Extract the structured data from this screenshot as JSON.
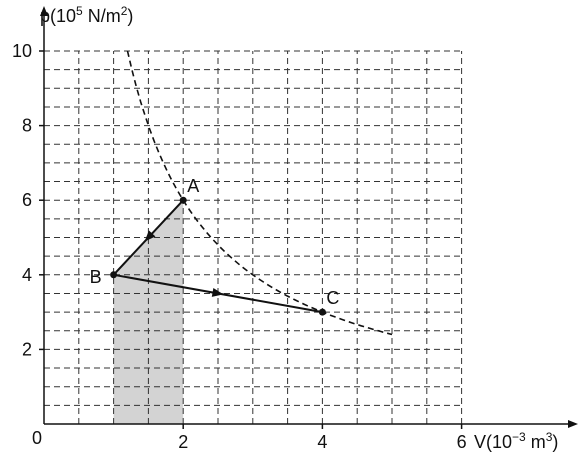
{
  "chart_data": {
    "type": "line",
    "title": "",
    "ylabel": {
      "pre": "p(10",
      "exp": "5",
      "mid": " N/m",
      "exp2": "2",
      "post": ")"
    },
    "xlabel": {
      "pre": "V(10",
      "exp": "−3",
      "mid": " m",
      "exp2": "3",
      "post": ")"
    },
    "xlim": [
      0,
      6
    ],
    "ylim": [
      0,
      10
    ],
    "x_ticks": [
      2,
      4,
      6
    ],
    "y_ticks": [
      2,
      4,
      6,
      8,
      10
    ],
    "origin_label": "0",
    "grid": true,
    "grid_minor_x": 0.5,
    "grid_minor_y": 0.5,
    "points": [
      {
        "name": "A",
        "x": 2,
        "y": 6
      },
      {
        "name": "B",
        "x": 1,
        "y": 4
      },
      {
        "name": "C",
        "x": 4,
        "y": 3
      }
    ],
    "isotherm": {
      "style": "dashed",
      "pV_constant": 12,
      "x_range": [
        1.2,
        5.0
      ]
    },
    "processes": [
      {
        "from": "A",
        "to": "B",
        "arrow": true
      },
      {
        "from": "B",
        "to": "C",
        "arrow": true
      }
    ],
    "shaded_region": {
      "x_range": [
        1,
        2
      ],
      "description": "area under A-B"
    },
    "colors": {
      "shade": "#d3d3d3",
      "ink": "#111111"
    }
  }
}
